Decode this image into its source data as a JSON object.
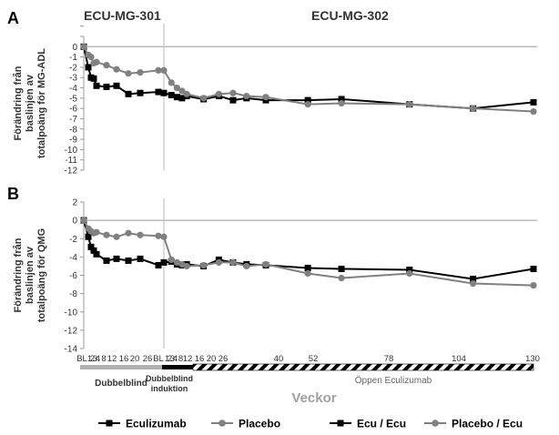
{
  "panels": [
    {
      "label": "A",
      "ylabel": [
        "Förändring från",
        "baslinjen av",
        "totalpoäng för MG-ADL"
      ],
      "yticks": [
        2,
        1,
        0,
        -1,
        -2,
        -3,
        -4,
        -5,
        -6,
        -7,
        -8,
        -9,
        -10,
        -11,
        -12
      ],
      "yticklabels": [
        "",
        "",
        "0",
        "-1",
        "-2",
        "-3",
        "-4",
        "-5",
        "-6",
        "-7",
        "-8",
        "-9",
        "-10",
        "-11",
        "-12"
      ]
    },
    {
      "label": "B",
      "ylabel": [
        "Förändring från",
        "baslinjen av",
        "totalpoäng för QMG"
      ],
      "yticks": [
        2,
        0,
        -2,
        -4,
        -6,
        -8,
        -10,
        -12,
        -14
      ],
      "yticklabels": [
        "2",
        "0",
        "-2",
        "-4",
        "-6",
        "-8",
        "-10",
        "-12",
        "-14"
      ]
    }
  ],
  "study_labels": {
    "left": "ECU-MG-301",
    "right": "ECU-MG-302"
  },
  "xaxis": {
    "title": "Veckor",
    "ticks_301": [
      "BL",
      "1",
      "2",
      "3",
      "4",
      "8",
      "12",
      "16",
      "20",
      "26"
    ],
    "ticks_302": [
      "BL",
      "1",
      "2",
      "3",
      "4",
      "8",
      "12",
      "16",
      "20",
      "26",
      "40",
      "52",
      "78",
      "104",
      "130"
    ]
  },
  "phases": {
    "double_blind": "Dubbelblind",
    "induction_line1": "Dubbelblind",
    "induction_line2": "induktion",
    "open_label": "Öppen Eculizumab"
  },
  "legend": [
    {
      "label": "Eculizumab",
      "marker": "square",
      "color": "#000000"
    },
    {
      "label": "Placebo",
      "marker": "circle",
      "color": "#808080"
    },
    {
      "label": "Ecu / Ecu",
      "marker": "square",
      "color": "#000000"
    },
    {
      "label": "Placebo / Ecu",
      "marker": "circle",
      "color": "#808080"
    }
  ],
  "colors": {
    "ecu": "#000000",
    "placebo": "#808080",
    "axis": "#9a9a9a",
    "grid": "#d9d9d9"
  },
  "chart_data": [
    {
      "type": "line",
      "panel": "A",
      "ylim": [
        -12,
        1
      ],
      "x_categories": [
        "BL",
        "1",
        "2",
        "3",
        "4",
        "8",
        "12",
        "16",
        "20",
        "26",
        "BL",
        "1",
        "2",
        "3",
        "4",
        "8",
        "12",
        "16",
        "20",
        "26",
        "40",
        "52",
        "78",
        "104",
        "130"
      ],
      "series": [
        {
          "name": "Eculizumab",
          "study": "ECU-MG-301",
          "x": [
            "BL",
            "1",
            "2",
            "3",
            "4",
            "8",
            "12",
            "16",
            "20",
            "26"
          ],
          "y": [
            0,
            -2.0,
            -3.0,
            -3.1,
            -3.8,
            -3.9,
            -3.8,
            -4.6,
            -4.5,
            -4.4
          ]
        },
        {
          "name": "Placebo",
          "study": "ECU-MG-301",
          "x": [
            "BL",
            "1",
            "2",
            "3",
            "4",
            "8",
            "12",
            "16",
            "20",
            "26"
          ],
          "y": [
            0,
            -0.8,
            -1.0,
            -1.6,
            -1.5,
            -1.8,
            -2.2,
            -2.6,
            -2.5,
            -2.3
          ]
        },
        {
          "name": "Ecu / Ecu",
          "study": "ECU-MG-302",
          "x": [
            "BL",
            "1",
            "2",
            "3",
            "4",
            "8",
            "12",
            "16",
            "20",
            "26",
            "40",
            "52",
            "78",
            "104",
            "130"
          ],
          "y": [
            -4.5,
            -4.7,
            -4.9,
            -5.0,
            -4.8,
            -5.1,
            -4.8,
            -5.2,
            -5.0,
            -5.2,
            -5.2,
            -5.1,
            -5.6,
            -6.0,
            -5.4
          ]
        },
        {
          "name": "Placebo / Ecu",
          "study": "ECU-MG-302",
          "x": [
            "BL",
            "1",
            "2",
            "3",
            "4",
            "8",
            "12",
            "16",
            "20",
            "26",
            "40",
            "52",
            "78",
            "104",
            "130"
          ],
          "y": [
            -2.3,
            -3.5,
            -4.0,
            -4.3,
            -4.6,
            -5.0,
            -4.6,
            -4.5,
            -4.8,
            -4.9,
            -5.6,
            -5.5,
            -5.6,
            -6.0,
            -6.3
          ]
        }
      ]
    },
    {
      "type": "line",
      "panel": "B",
      "ylim": [
        -14,
        2
      ],
      "x_categories": [
        "BL",
        "1",
        "2",
        "3",
        "4",
        "8",
        "12",
        "16",
        "20",
        "26",
        "BL",
        "1",
        "2",
        "3",
        "4",
        "8",
        "12",
        "16",
        "20",
        "26",
        "40",
        "52",
        "78",
        "104",
        "130"
      ],
      "series": [
        {
          "name": "Eculizumab",
          "study": "ECU-MG-301",
          "x": [
            "BL",
            "1",
            "2",
            "3",
            "4",
            "8",
            "12",
            "16",
            "20",
            "26"
          ],
          "y": [
            0,
            -1.8,
            -2.9,
            -3.3,
            -3.7,
            -4.4,
            -4.2,
            -4.4,
            -4.2,
            -4.9
          ]
        },
        {
          "name": "Placebo",
          "study": "ECU-MG-301",
          "x": [
            "BL",
            "1",
            "2",
            "3",
            "4",
            "8",
            "12",
            "16",
            "20",
            "26"
          ],
          "y": [
            0,
            -0.9,
            -1.2,
            -1.4,
            -1.3,
            -1.6,
            -1.8,
            -1.4,
            -1.6,
            -1.7
          ]
        },
        {
          "name": "Ecu / Ecu",
          "study": "ECU-MG-302",
          "x": [
            "BL",
            "1",
            "2",
            "3",
            "4",
            "8",
            "12",
            "16",
            "20",
            "26",
            "40",
            "52",
            "78",
            "104",
            "130"
          ],
          "y": [
            -4.6,
            -4.5,
            -4.8,
            -4.9,
            -4.8,
            -5.0,
            -4.3,
            -4.6,
            -4.8,
            -4.9,
            -5.2,
            -5.3,
            -5.4,
            -6.4,
            -5.3
          ]
        },
        {
          "name": "Placebo / Ecu",
          "study": "ECU-MG-302",
          "x": [
            "BL",
            "1",
            "2",
            "3",
            "4",
            "8",
            "12",
            "16",
            "20",
            "26",
            "40",
            "52",
            "78",
            "104",
            "130"
          ],
          "y": [
            -1.8,
            -4.3,
            -4.6,
            -4.8,
            -5.0,
            -4.9,
            -4.6,
            -4.6,
            -5.0,
            -4.8,
            -5.8,
            -6.3,
            -5.8,
            -6.9,
            -7.1
          ]
        }
      ]
    }
  ]
}
